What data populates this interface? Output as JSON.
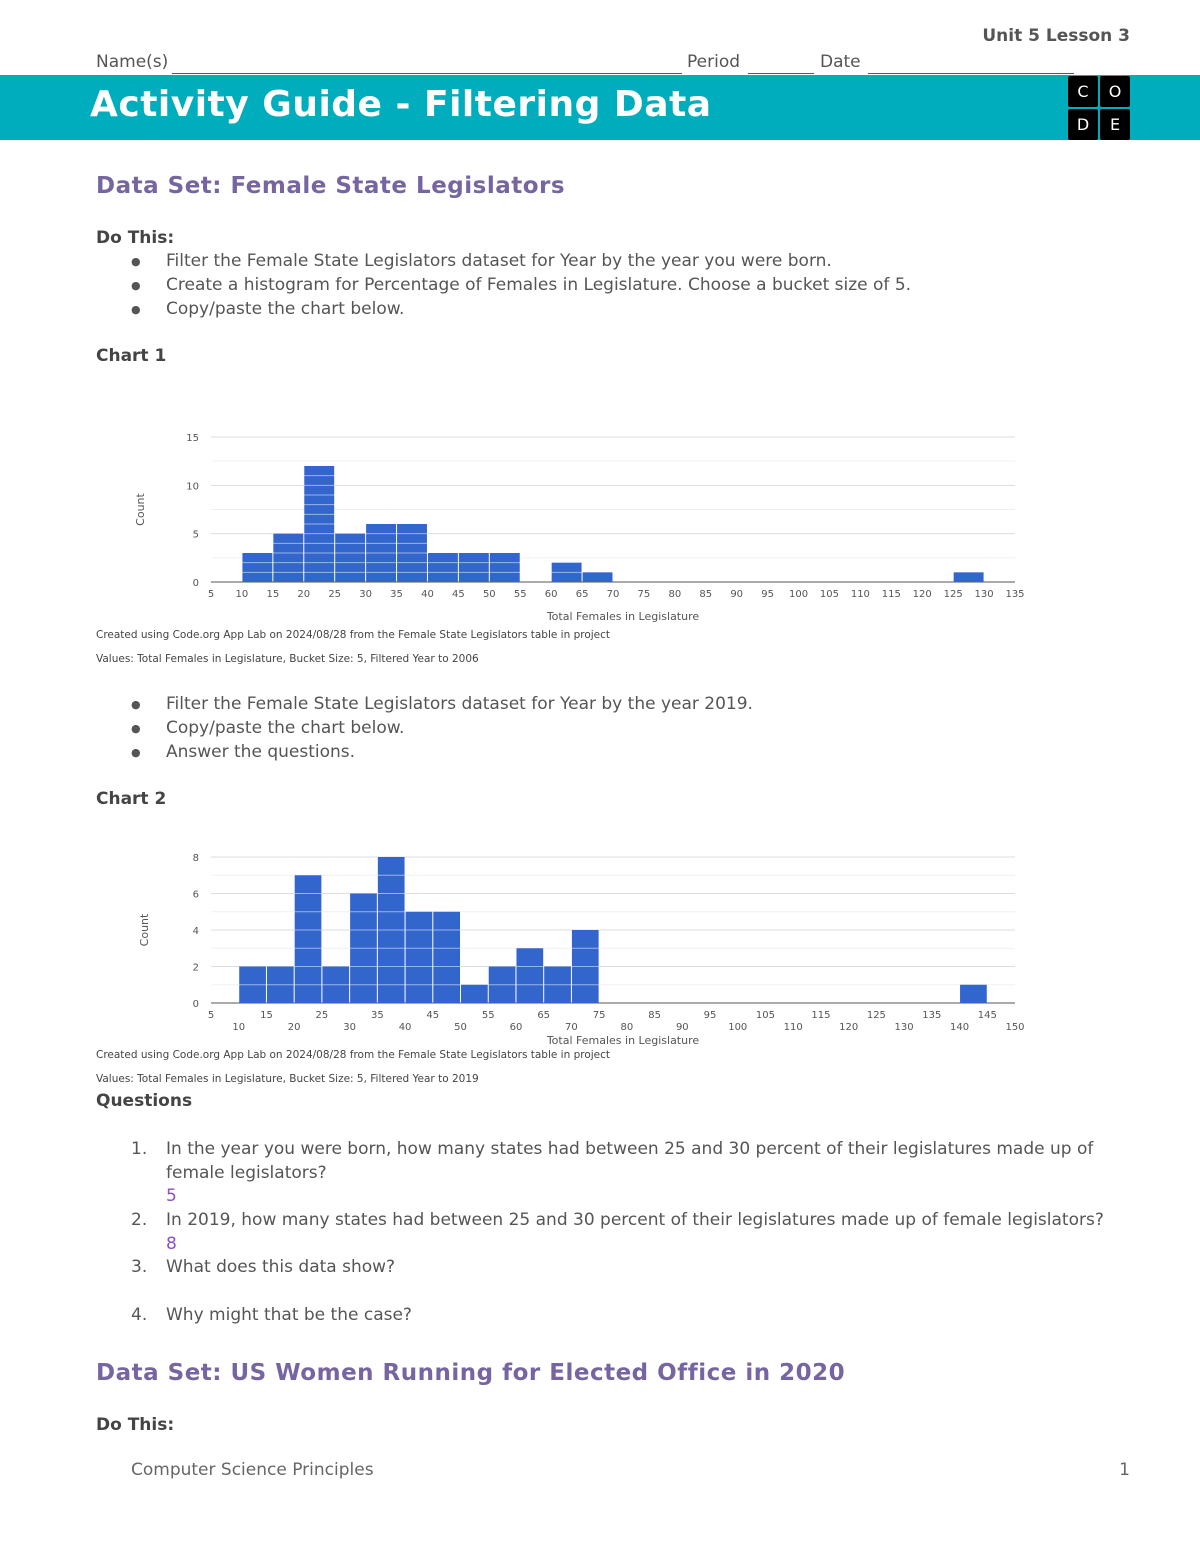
{
  "header": {
    "unit": "Unit 5 Lesson 3",
    "name_label": "Name(s)",
    "period_label": "Period",
    "date_label": "Date",
    "title": "Activity Guide - Filtering Data",
    "logo_letters": [
      "C",
      "O",
      "D",
      "E"
    ],
    "banner_color": "#00adbc"
  },
  "section1": {
    "heading": "Data Set: Female State Legislators",
    "do_this": "Do This:",
    "steps1": [
      "Filter the Female State Legislators dataset for Year by the year you were born.",
      "Create a histogram for Percentage of Females in Legislature. Choose a bucket size of 5.",
      "Copy/paste the chart below."
    ],
    "chart1_label": "Chart 1",
    "chart1_caption1": "Created using Code.org App Lab on 2024/08/28 from the Female State Legislators table in project",
    "chart1_caption2": "Values: Total Females in Legislature, Bucket Size: 5, Filtered Year to 2006",
    "steps2": [
      "Filter the Female State Legislators dataset for Year by the year 2019.",
      "Copy/paste the chart below.",
      "Answer the questions."
    ],
    "chart2_label": "Chart 2",
    "chart2_caption1": "Created using Code.org App Lab on 2024/08/28 from the Female State Legislators table in project",
    "chart2_caption2": "Values: Total Females in Legislature, Bucket Size: 5, Filtered Year to 2019",
    "questions_label": "Questions",
    "questions": [
      {
        "n": "1.",
        "text": "In the year you were born, how many states had between 25 and 30 percent of their legislatures made up of female legislators?",
        "answer": "5"
      },
      {
        "n": "2.",
        "text": "In 2019, how many states had between 25 and 30 percent of their legislatures made up of female legislators?",
        "answer": "8"
      },
      {
        "n": "3.",
        "text": "What does this data show?",
        "answer": ""
      },
      {
        "n": "4.",
        "text": "Why might that be the case?",
        "answer": ""
      }
    ]
  },
  "section2": {
    "heading": "Data Set: US Women Running for Elected Office in 2020",
    "do_this": "Do This:"
  },
  "footer": {
    "course": "Computer Science Principles",
    "page": "1"
  },
  "chart_data": [
    {
      "type": "bar",
      "title": "",
      "xlabel": "Total Females in Legislature",
      "ylabel": "Count",
      "bucket_size": 5,
      "xlim": [
        5,
        135
      ],
      "ylim": [
        0,
        15
      ],
      "yticks": [
        0,
        5,
        10,
        15
      ],
      "grid": true,
      "bar_color": "#3366cc",
      "bins": [
        [
          10,
          3
        ],
        [
          15,
          5
        ],
        [
          20,
          12
        ],
        [
          25,
          5
        ],
        [
          30,
          6
        ],
        [
          35,
          6
        ],
        [
          40,
          3
        ],
        [
          45,
          3
        ],
        [
          50,
          3
        ],
        [
          60,
          2
        ],
        [
          65,
          1
        ],
        [
          125,
          1
        ]
      ]
    },
    {
      "type": "bar",
      "title": "",
      "xlabel": "Total Females in Legislature",
      "ylabel": "Count",
      "bucket_size": 5,
      "xlim": [
        5,
        150
      ],
      "ylim": [
        0,
        8
      ],
      "yticks": [
        0,
        2,
        4,
        6,
        8
      ],
      "grid": true,
      "bar_color": "#3366cc",
      "bins": [
        [
          10,
          2
        ],
        [
          15,
          2
        ],
        [
          20,
          7
        ],
        [
          25,
          2
        ],
        [
          30,
          6
        ],
        [
          35,
          8
        ],
        [
          40,
          5
        ],
        [
          45,
          5
        ],
        [
          50,
          1
        ],
        [
          55,
          2
        ],
        [
          60,
          3
        ],
        [
          65,
          2
        ],
        [
          70,
          4
        ],
        [
          140,
          1
        ]
      ]
    }
  ]
}
